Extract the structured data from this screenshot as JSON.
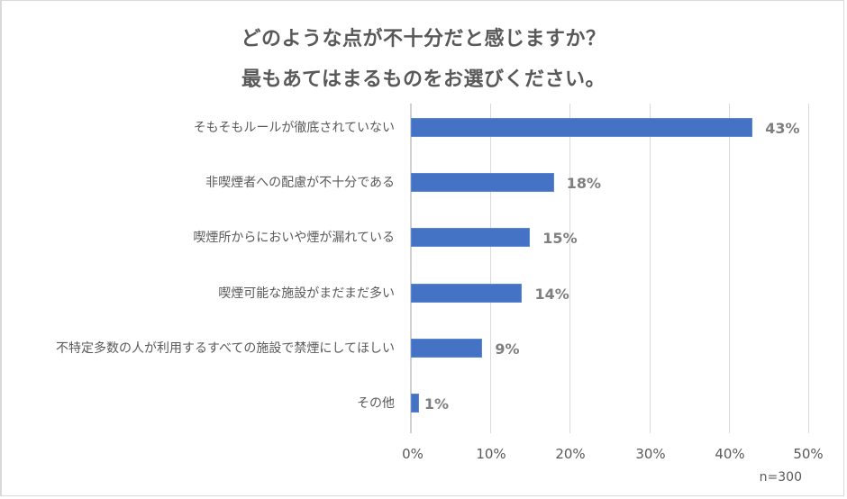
{
  "chart_data": {
    "type": "bar",
    "orientation": "horizontal",
    "title": "どのような点が不十分だと感じますか？",
    "subtitle": "最もあてはまるものをお選びください。",
    "categories": [
      "そもそもルールが徹底されていない",
      "非喫煙者への配慮が不十分である",
      "喫煙所からにおいや煙が漏れている",
      "喫煙可能な施設がまだまだ多い",
      "不特定多数の人が利用するすべての施設で禁煙にしてほしい",
      "その他"
    ],
    "values": [
      43,
      18,
      15,
      14,
      9,
      1
    ],
    "value_labels": [
      "43%",
      "18%",
      "15%",
      "14%",
      "9%",
      "1%"
    ],
    "xlabel": "",
    "ylabel": "",
    "xlim": [
      0,
      50
    ],
    "x_ticks": [
      "0%",
      "10%",
      "20%",
      "30%",
      "40%",
      "50%"
    ],
    "grid": true,
    "legend": null,
    "annotation": "n=300",
    "bar_color": "#4472c4"
  },
  "colors": {
    "bar": "#4472c4",
    "title": "#595959",
    "value_label": "#7f7f7f",
    "gridline": "#d9d9d9"
  }
}
